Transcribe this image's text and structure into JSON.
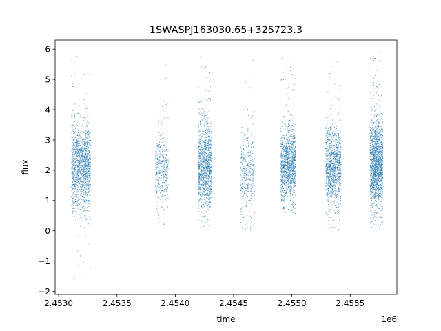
{
  "chart_data": {
    "type": "scatter",
    "title": "1SWASPJ163030.65+325723.3",
    "xlabel": "time",
    "ylabel": "flux",
    "x_offset_label": "1e6",
    "xlim": [
      2452970,
      2455900
    ],
    "ylim": [
      -2.1,
      6.3
    ],
    "x_ticks": [
      2453000,
      2453500,
      2454000,
      2454500,
      2455000,
      2455500
    ],
    "x_tick_labels": [
      "2.4530",
      "2.4535",
      "2.4540",
      "2.4545",
      "2.4550",
      "2.4555"
    ],
    "y_ticks": [
      -2,
      -1,
      0,
      1,
      2,
      3,
      4,
      5,
      6
    ],
    "y_tick_labels": [
      "−2",
      "−1",
      "0",
      "1",
      "2",
      "3",
      "4",
      "5",
      "6"
    ],
    "grid": false,
    "marker_color": "#1f77b4",
    "clusters": [
      {
        "t_start": 2453110,
        "t_end": 2453275,
        "flux_center": 2.1,
        "flux_spread": 0.7,
        "n_points": 1500,
        "flux_min": -1.7,
        "flux_max": 5.85
      },
      {
        "t_start": 2453830,
        "t_end": 2453940,
        "flux_center": 2.0,
        "flux_spread": 0.6,
        "n_points": 450,
        "flux_min": 0.1,
        "flux_max": 5.55
      },
      {
        "t_start": 2454195,
        "t_end": 2454310,
        "flux_center": 2.1,
        "flux_spread": 0.75,
        "n_points": 1200,
        "flux_min": 0.1,
        "flux_max": 5.85
      },
      {
        "t_start": 2454560,
        "t_end": 2454680,
        "flux_center": 1.9,
        "flux_spread": 0.7,
        "n_points": 450,
        "flux_min": 0.0,
        "flux_max": 5.7
      },
      {
        "t_start": 2454905,
        "t_end": 2455030,
        "flux_center": 2.2,
        "flux_spread": 0.6,
        "n_points": 1300,
        "flux_min": 0.55,
        "flux_max": 5.8
      },
      {
        "t_start": 2455290,
        "t_end": 2455420,
        "flux_center": 2.2,
        "flux_spread": 0.65,
        "n_points": 1200,
        "flux_min": 0.0,
        "flux_max": 5.75
      },
      {
        "t_start": 2455670,
        "t_end": 2455780,
        "flux_center": 2.25,
        "flux_spread": 0.75,
        "n_points": 1700,
        "flux_min": 0.05,
        "flux_max": 5.9
      }
    ]
  }
}
